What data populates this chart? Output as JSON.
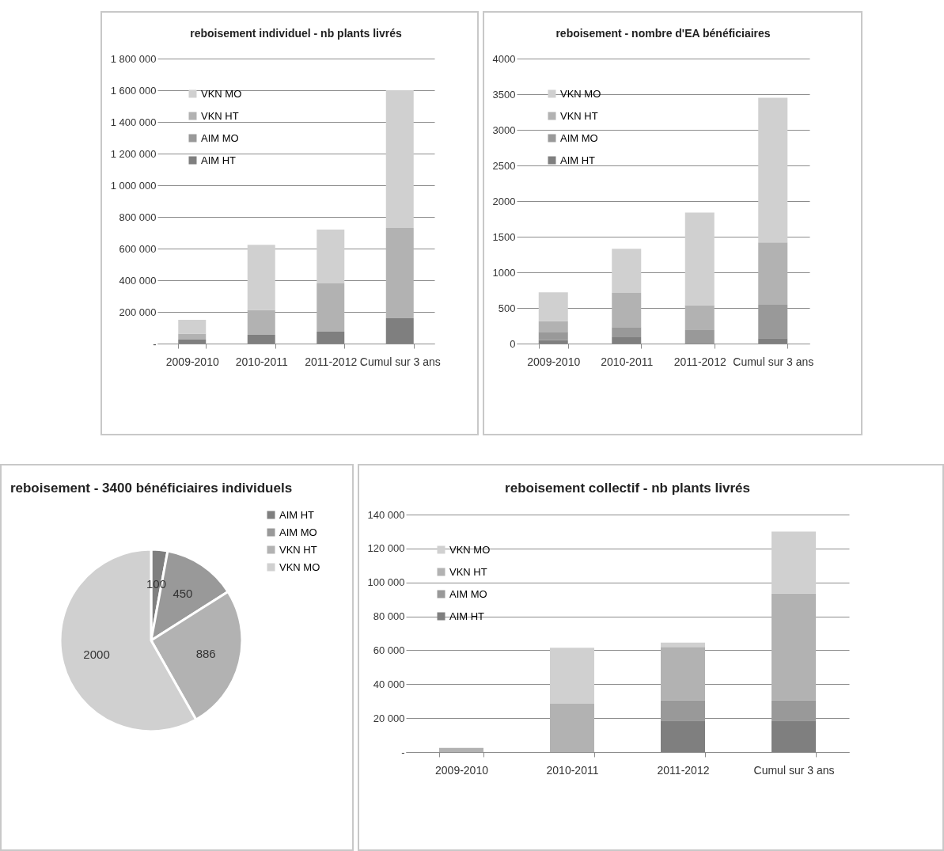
{
  "chart_data": [
    {
      "type": "bar",
      "title": "reboisement individuel - nb plants livrés",
      "categories": [
        "2009-2010",
        "2010-2011",
        "2011-2012",
        "Cumul sur 3 ans"
      ],
      "stacked": true,
      "grid": "y",
      "legend": "top left",
      "ylim": [
        0,
        1800000
      ],
      "yticks": [
        {
          "value": 0,
          "label": "-"
        },
        {
          "value": 200000,
          "label": "200 000"
        },
        {
          "value": 400000,
          "label": "400 000"
        },
        {
          "value": 600000,
          "label": "600 000"
        },
        {
          "value": 800000,
          "label": "800 000"
        },
        {
          "value": 1000000,
          "label": "1 000 000"
        },
        {
          "value": 1200000,
          "label": "1 200 000"
        },
        {
          "value": 1400000,
          "label": "1 400 000"
        },
        {
          "value": 1600000,
          "label": "1 600 000"
        },
        {
          "value": 1800000,
          "label": "1 800 000"
        }
      ],
      "series": [
        {
          "name": "AIM HT",
          "color": "#7f7f7f",
          "values": [
            25000,
            55000,
            75000,
            160000
          ]
        },
        {
          "name": "AIM MO",
          "color": "#999999",
          "values": [
            0,
            0,
            0,
            0
          ]
        },
        {
          "name": "VKN HT",
          "color": "#b2b2b2",
          "values": [
            37000,
            157000,
            305000,
            570000
          ]
        },
        {
          "name": "VKN MO",
          "color": "#d0d0d0",
          "values": [
            88000,
            412000,
            340000,
            870000
          ]
        }
      ]
    },
    {
      "type": "bar",
      "title": "reboisement - nombre d'EA bénéficiaires",
      "categories": [
        "2009-2010",
        "2010-2011",
        "2011-2012",
        "Cumul sur 3 ans"
      ],
      "stacked": true,
      "grid": "y",
      "legend": "top left",
      "ylim": [
        0,
        4000
      ],
      "yticks": [
        0,
        500,
        1000,
        1500,
        2000,
        2500,
        3000,
        3500,
        4000
      ],
      "series": [
        {
          "name": "AIM HT",
          "color": "#7f7f7f",
          "values": [
            50,
            90,
            0,
            75
          ]
        },
        {
          "name": "AIM MO",
          "color": "#999999",
          "values": [
            115,
            140,
            190,
            470
          ]
        },
        {
          "name": "VKN HT",
          "color": "#b2b2b2",
          "values": [
            150,
            480,
            350,
            875
          ]
        },
        {
          "name": "VKN MO",
          "color": "#d0d0d0",
          "values": [
            405,
            620,
            1300,
            2030
          ]
        }
      ]
    },
    {
      "type": "pie",
      "title": "reboisement - 3400 bénéficiaires individuels",
      "categories": [
        "AIM HT",
        "AIM MO",
        "VKN HT",
        "VKN MO"
      ],
      "values": [
        100,
        450,
        886,
        2000
      ],
      "colors": [
        "#7f7f7f",
        "#999999",
        "#b2b2b2",
        "#d0d0d0"
      ],
      "data_labels": true,
      "legend": "right"
    },
    {
      "type": "bar",
      "title": "reboisement collectif - nb plants livrés",
      "categories": [
        "2009-2010",
        "2010-2011",
        "2011-2012",
        "Cumul sur 3 ans"
      ],
      "stacked": true,
      "grid": "y",
      "legend": "top left",
      "ylim": [
        0,
        140000
      ],
      "yticks": [
        {
          "value": 0,
          "label": "-"
        },
        {
          "value": 20000,
          "label": "20 000"
        },
        {
          "value": 40000,
          "label": "40 000"
        },
        {
          "value": 60000,
          "label": "60 000"
        },
        {
          "value": 80000,
          "label": "80 000"
        },
        {
          "value": 100000,
          "label": "100 000"
        },
        {
          "value": 120000,
          "label": "120 000"
        },
        {
          "value": 140000,
          "label": "140 000"
        }
      ],
      "series": [
        {
          "name": "AIM HT",
          "color": "#7f7f7f",
          "values": [
            0,
            0,
            18500,
            18500
          ]
        },
        {
          "name": "AIM MO",
          "color": "#999999",
          "values": [
            0,
            0,
            12000,
            12000
          ]
        },
        {
          "name": "VKN HT",
          "color": "#b2b2b2",
          "values": [
            2500,
            28500,
            31500,
            63000
          ]
        },
        {
          "name": "VKN MO",
          "color": "#d0d0d0",
          "values": [
            0,
            33000,
            2500,
            36500
          ]
        }
      ]
    }
  ]
}
